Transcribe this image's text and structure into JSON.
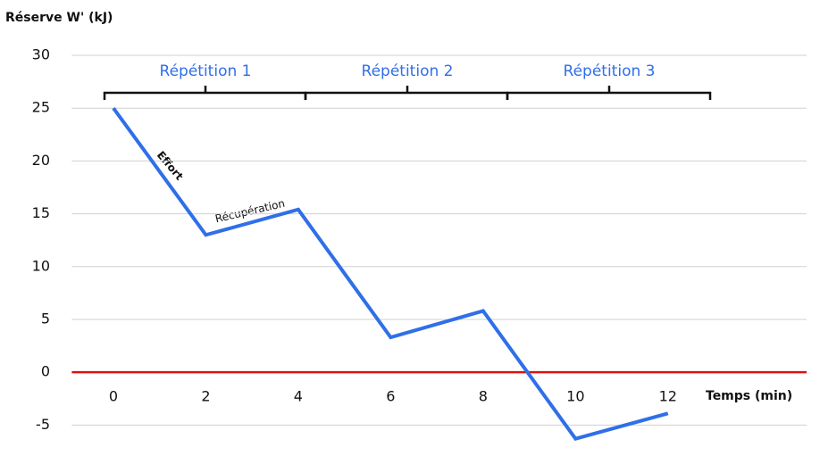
{
  "chart_data": {
    "type": "line",
    "y_axis_title": "Réserve W' (kJ)",
    "x_axis_title": "Temps (min)",
    "x": [
      0,
      2,
      4,
      6,
      8,
      10,
      12
    ],
    "values": [
      25,
      13,
      15.4,
      3.3,
      5.8,
      -6.3,
      -3.9
    ],
    "color": "#2f6fe8",
    "xlim": [
      -0.9,
      15
    ],
    "xticks": [
      0,
      2,
      4,
      6,
      8,
      10,
      12
    ],
    "ylim": [
      -7,
      30
    ],
    "yticks": [
      30,
      25,
      20,
      15,
      10,
      5,
      0,
      -5
    ],
    "grid": true,
    "zero_line_color": "#e01010",
    "annotations": [
      "Effort",
      "Récupération"
    ],
    "phases": [
      "Répétition 1",
      "Répétition 2",
      "Répétition 3"
    ]
  }
}
